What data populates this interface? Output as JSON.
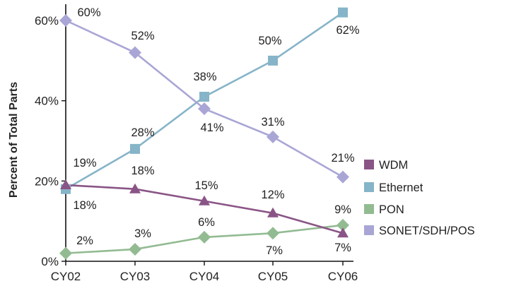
{
  "chart_data": {
    "type": "line",
    "title": "",
    "xlabel": "",
    "ylabel": "Percent of Total Parts",
    "categories": [
      "CY02",
      "CY03",
      "CY04",
      "CY05",
      "CY06"
    ],
    "y_ticks": [
      0,
      20,
      40,
      60
    ],
    "y_tick_labels": [
      "0%",
      "20%",
      "40%",
      "60%"
    ],
    "ylim": [
      0,
      62
    ],
    "grid": false,
    "legend_position": "right",
    "series": [
      {
        "name": "WDM",
        "color": "#8a5586",
        "marker": "triangle",
        "values": [
          19,
          18,
          15,
          12,
          7
        ],
        "labels": [
          "19%",
          "18%",
          "15%",
          "12%",
          "7%"
        ]
      },
      {
        "name": "Ethernet",
        "color": "#86b4c8",
        "marker": "square",
        "values": [
          18,
          28,
          41,
          50,
          62
        ],
        "labels": [
          "18%",
          "28%",
          "41%",
          "50%",
          "62%"
        ]
      },
      {
        "name": "PON",
        "color": "#93bb92",
        "marker": "diamond",
        "values": [
          2,
          3,
          6,
          7,
          9
        ],
        "labels": [
          "2%",
          "3%",
          "6%",
          "7%",
          "9%"
        ]
      },
      {
        "name": "SONET/SDH/POS",
        "color": "#a9a6d6",
        "marker": "diamond",
        "values": [
          60,
          52,
          38,
          31,
          21
        ],
        "labels": [
          "60%",
          "52%",
          "38%",
          "31%",
          "21%"
        ]
      }
    ]
  }
}
